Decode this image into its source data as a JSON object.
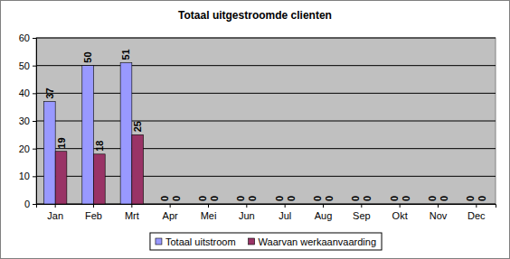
{
  "chart_data": {
    "type": "bar",
    "title": "Totaal uitgestroomde clienten",
    "categories": [
      "Jan",
      "Feb",
      "Mrt",
      "Apr",
      "Mei",
      "Jun",
      "Jul",
      "Aug",
      "Sep",
      "Okt",
      "Nov",
      "Dec"
    ],
    "series": [
      {
        "name": "Totaal uitstroom",
        "color": "#9999ff",
        "values": [
          37,
          50,
          51,
          0,
          0,
          0,
          0,
          0,
          0,
          0,
          0,
          0
        ]
      },
      {
        "name": "Waarvan werkaanvaarding",
        "color": "#993366",
        "values": [
          19,
          18,
          25,
          0,
          0,
          0,
          0,
          0,
          0,
          0,
          0,
          0
        ]
      }
    ],
    "ylim": [
      0,
      60
    ],
    "yticks": [
      0,
      10,
      20,
      30,
      40,
      50,
      60
    ],
    "grid": true,
    "data_labels": true,
    "legend": "bottom"
  }
}
